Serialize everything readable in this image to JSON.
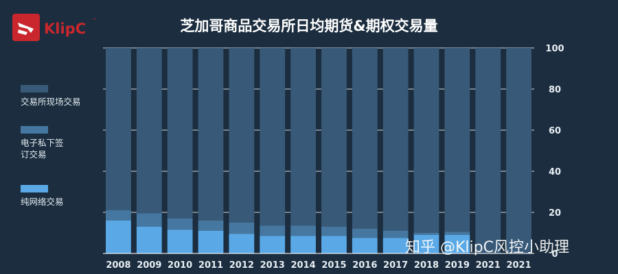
{
  "header": {
    "title": "芝加哥商品交易所日均期货&期权交易量",
    "logo_text": "KlipC"
  },
  "watermark": "知乎 @KlipC风控小助理",
  "colors": {
    "background": "#1b2d3e",
    "logo_red": "#c9272d"
  },
  "chart_data": {
    "type": "bar",
    "stacked": true,
    "title": "芝加哥商品交易所日均期货&期权交易量",
    "categories": [
      "2008",
      "2009",
      "2010",
      "2011",
      "2012",
      "2013",
      "2014",
      "2015",
      "2016",
      "2017",
      "2018",
      "2019",
      "2021",
      "2021"
    ],
    "series": [
      {
        "name": "纯网络交易",
        "color": "#5aa9e6",
        "values": [
          16,
          13,
          11.5,
          11,
          9.5,
          8.5,
          8.5,
          8.5,
          7.5,
          7.5,
          9,
          9,
          0,
          0
        ]
      },
      {
        "name": "电子私下签\n订交易",
        "color": "#4577a0",
        "values": [
          5,
          6.5,
          5.5,
          5,
          5.5,
          5,
          5,
          4.5,
          4.5,
          3.5,
          1,
          1.5,
          0,
          0
        ]
      },
      {
        "name": "交易所现场交易",
        "color": "#385a78",
        "values": [
          79,
          80.5,
          83,
          84,
          85,
          86.5,
          86.5,
          87,
          88,
          89,
          90,
          89.5,
          100,
          100
        ]
      }
    ],
    "ylim": [
      0,
      100
    ],
    "yticks": [
      0,
      20,
      40,
      60,
      80,
      100
    ],
    "y_axis_side": "right",
    "grid": true,
    "legend_position": "left"
  }
}
